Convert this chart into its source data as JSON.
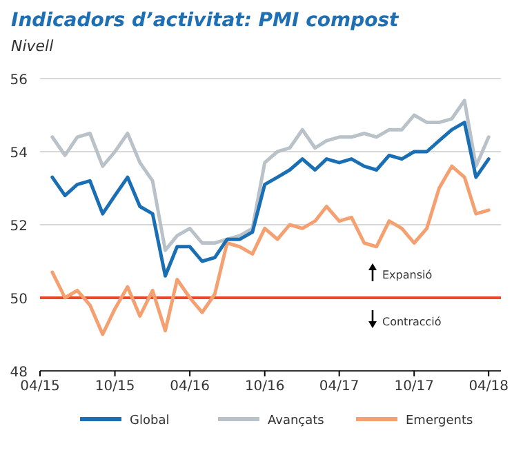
{
  "chart_data": {
    "type": "line",
    "title": "Indicadors d’activitat: PMI compost",
    "subtitle": "Nivell",
    "x": [
      "2015-05",
      "2015-06",
      "2015-07",
      "2015-08",
      "2015-09",
      "2015-10",
      "2015-11",
      "2015-12",
      "2016-01",
      "2016-02",
      "2016-03",
      "2016-04",
      "2016-05",
      "2016-06",
      "2016-07",
      "2016-08",
      "2016-09",
      "2016-10",
      "2016-11",
      "2016-12",
      "2017-01",
      "2017-02",
      "2017-03",
      "2017-04",
      "2017-05",
      "2017-06",
      "2017-07",
      "2017-08",
      "2017-09",
      "2017-10",
      "2017-11",
      "2017-12",
      "2018-01",
      "2018-02",
      "2018-03",
      "2018-04"
    ],
    "series": [
      {
        "name": "Global",
        "color": "#1a6fb4",
        "values": [
          53.3,
          52.8,
          53.1,
          53.2,
          52.3,
          52.8,
          53.3,
          52.5,
          52.3,
          50.6,
          51.4,
          51.4,
          51.0,
          51.1,
          51.6,
          51.6,
          51.8,
          53.1,
          53.3,
          53.5,
          53.8,
          53.5,
          53.8,
          53.7,
          53.8,
          53.6,
          53.5,
          53.9,
          53.8,
          54.0,
          54.0,
          54.3,
          54.6,
          54.8,
          53.3,
          53.8
        ]
      },
      {
        "name": "Avançats",
        "color": "#b8c2c8",
        "values": [
          54.4,
          53.9,
          54.4,
          54.5,
          53.6,
          54.0,
          54.5,
          53.7,
          53.2,
          51.3,
          51.7,
          51.9,
          51.5,
          51.5,
          51.6,
          51.7,
          51.9,
          53.7,
          54.0,
          54.1,
          54.6,
          54.1,
          54.3,
          54.4,
          54.4,
          54.5,
          54.4,
          54.6,
          54.6,
          55.0,
          54.8,
          54.8,
          54.9,
          55.4,
          53.6,
          54.4
        ]
      },
      {
        "name": "Emergents",
        "color": "#f4a070",
        "values": [
          50.7,
          50.0,
          50.2,
          49.8,
          49.0,
          49.7,
          50.3,
          49.5,
          50.2,
          49.1,
          50.5,
          50.0,
          49.6,
          50.1,
          51.5,
          51.4,
          51.2,
          51.9,
          51.6,
          52.0,
          51.9,
          52.1,
          52.5,
          52.1,
          52.2,
          51.5,
          51.4,
          52.1,
          51.9,
          51.5,
          51.9,
          53.0,
          53.6,
          53.3,
          52.3,
          52.4
        ]
      }
    ],
    "xlim": [
      "2015-04",
      "2018-05"
    ],
    "xticks": [
      {
        "value": "2015-04",
        "label": "04/15"
      },
      {
        "value": "2015-10",
        "label": "10/15"
      },
      {
        "value": "2016-04",
        "label": "04/16"
      },
      {
        "value": "2016-10",
        "label": "10/16"
      },
      {
        "value": "2017-04",
        "label": "04/17"
      },
      {
        "value": "2017-10",
        "label": "10/17"
      },
      {
        "value": "2018-04",
        "label": "04/18"
      }
    ],
    "ylim": [
      48,
      56
    ],
    "yticks": [
      48,
      50,
      52,
      54,
      56
    ],
    "grid": "y",
    "legend": "bottom",
    "ref_lines": [
      {
        "axis": "y",
        "value": 50,
        "color": "#e8472a"
      }
    ],
    "annotations": [
      "Expansió",
      "Contracció"
    ]
  }
}
